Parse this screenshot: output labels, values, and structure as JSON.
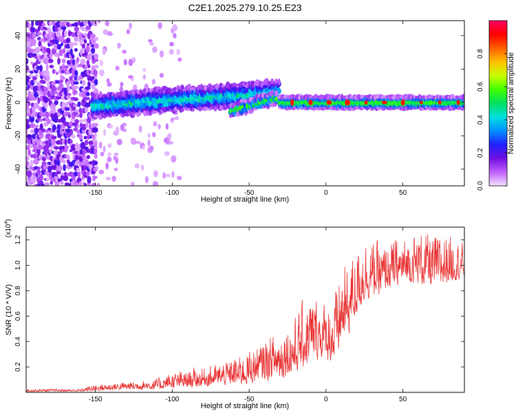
{
  "title": "C2E1.2025.279.10.25.E23",
  "chart_data": [
    {
      "type": "heatmap",
      "title": "C2E1.2025.279.10.25.E23",
      "xlabel": "Height of straight line (km)",
      "ylabel": "Frequency (Hz)",
      "xlim": [
        -195,
        90
      ],
      "ylim": [
        -50,
        49
      ],
      "xticks": [
        -150,
        -100,
        -50,
        0,
        50
      ],
      "yticks": [
        -40,
        -20,
        0,
        20,
        40
      ],
      "colorbar": {
        "label": "Normalized spectral amplitude",
        "range": [
          0,
          1
        ],
        "ticks": [
          0.0,
          0.2,
          0.4,
          0.6,
          0.8
        ],
        "tick_labels": [
          "0.0",
          "0.2",
          "0.4",
          "0.6",
          "0.8"
        ],
        "colormap": [
          "#f4e2ff",
          "#c060ff",
          "#7010e0",
          "#2020ff",
          "#0090ff",
          "#00e0e0",
          "#00e060",
          "#40ff00",
          "#c8ff00",
          "#ffc000",
          "#ff6000",
          "#ff0000",
          "#ff0060"
        ]
      },
      "features": [
        {
          "name": "noise",
          "x_range": [
            -195,
            -150
          ],
          "freq_range": [
            -50,
            49
          ],
          "amplitude": 0.15
        },
        {
          "name": "signal-band",
          "x_range": [
            -152,
            -30
          ],
          "freq_center_start": -2,
          "freq_center_end": 6,
          "half_width": 6,
          "amplitude": 0.35
        },
        {
          "name": "signal-band-lower",
          "x_range": [
            -62,
            -32
          ],
          "freq_center_start": -5,
          "freq_center_end": 3,
          "half_width": 3,
          "amplitude": 0.45
        },
        {
          "name": "carrier",
          "x_range": [
            -30,
            90
          ],
          "freq_center": 0,
          "half_width": 3,
          "amplitude": 0.6
        }
      ]
    },
    {
      "type": "line",
      "xlabel": "Height of straight line (km)",
      "ylabel": "SNR (10 * V/V)",
      "y_multiplier": "(x10",
      "y_multiplier_exp": "4",
      "xlim": [
        -195,
        90
      ],
      "ylim": [
        0,
        1.3
      ],
      "xticks": [
        -150,
        -100,
        -50,
        0,
        50
      ],
      "yticks": [
        0.2,
        0.4,
        0.6,
        0.8,
        1.0,
        1.2
      ],
      "series": [
        {
          "name": "SNR",
          "color": "#e83030",
          "envelope_x": [
            -195,
            -160,
            -150,
            -130,
            -110,
            -100,
            -90,
            -80,
            -70,
            -60,
            -50,
            -40,
            -30,
            -20,
            -15,
            -10,
            -5,
            0,
            5,
            10,
            15,
            20,
            25,
            30,
            35,
            40,
            50,
            60,
            70,
            80,
            90
          ],
          "envelope_lo": [
            0.005,
            0.005,
            0.01,
            0.02,
            0.02,
            0.03,
            0.03,
            0.04,
            0.05,
            0.05,
            0.06,
            0.08,
            0.1,
            0.14,
            0.18,
            0.2,
            0.25,
            0.25,
            0.2,
            0.35,
            0.45,
            0.6,
            0.7,
            0.75,
            0.75,
            0.8,
            0.85,
            0.85,
            0.8,
            0.85,
            0.9
          ],
          "envelope_hi": [
            0.03,
            0.03,
            0.07,
            0.09,
            0.12,
            0.17,
            0.19,
            0.22,
            0.24,
            0.3,
            0.36,
            0.45,
            0.55,
            0.65,
            0.75,
            0.85,
            0.8,
            0.75,
            0.8,
            1.05,
            1.1,
            1.22,
            1.28,
            1.25,
            1.2,
            1.22,
            1.25,
            1.3,
            1.3,
            1.3,
            1.2
          ]
        }
      ]
    }
  ]
}
